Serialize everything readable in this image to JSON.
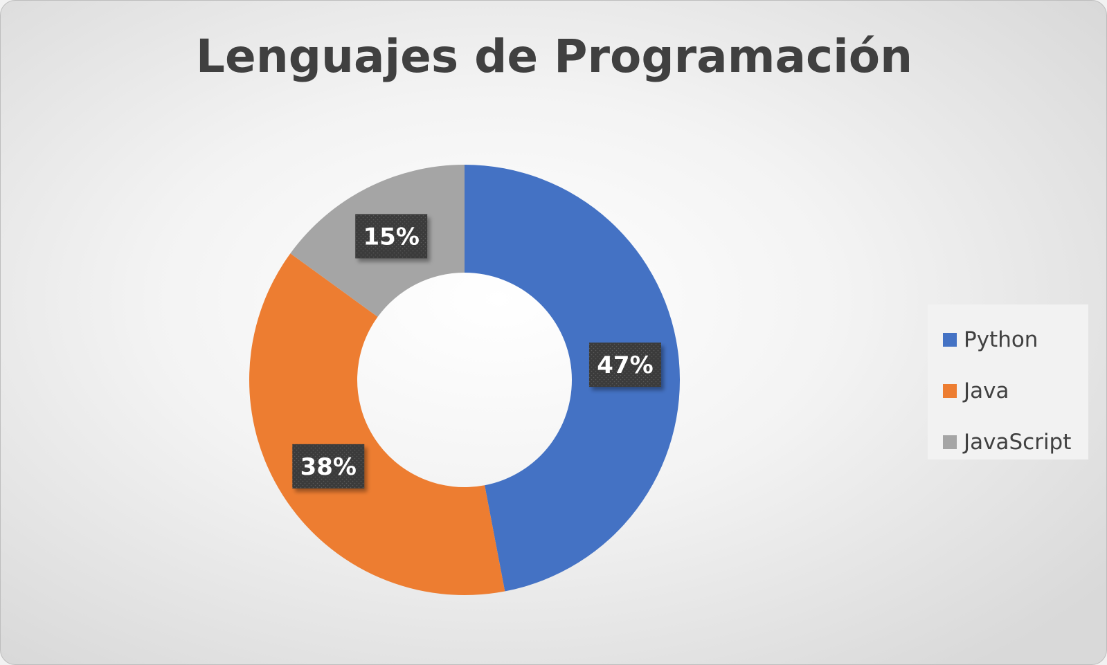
{
  "chart_data": {
    "type": "pie",
    "variant": "donut",
    "title": "Lenguajes de Programación",
    "legend_position": "right",
    "slices": [
      {
        "name": "Python",
        "value": 47,
        "label": "47%",
        "color": "#4472C4"
      },
      {
        "name": "Java",
        "value": 38,
        "label": "38%",
        "color": "#ED7D31"
      },
      {
        "name": "JavaScript",
        "value": 15,
        "label": "15%",
        "color": "#A5A5A5"
      }
    ]
  }
}
